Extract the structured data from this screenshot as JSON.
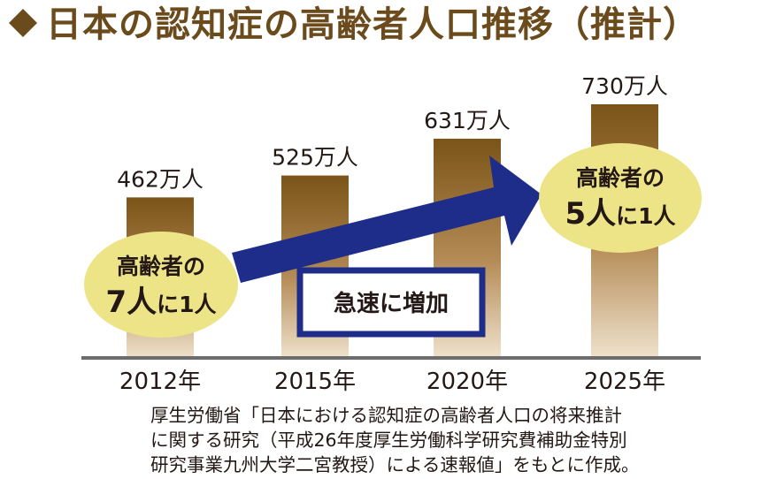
{
  "title": "日本の認知症の高齢者人口推移（推計）",
  "title_icon": "diamond-icon",
  "colors": {
    "title": "#6b4a1c",
    "bar_top": "#7a5418",
    "bar_bottom": "#efe2cc",
    "bubble": "#ece487",
    "arrow": "#1f2d8a",
    "baseline": "#6d6d6d"
  },
  "chart_data": {
    "type": "bar",
    "categories": [
      "2012年",
      "2015年",
      "2020年",
      "2025年"
    ],
    "values": [
      462,
      525,
      631,
      730
    ],
    "value_labels": [
      "462万人",
      "525万人",
      "631万人",
      "730万人"
    ],
    "unit": "万人",
    "ylim": [
      0,
      730
    ],
    "grid": false,
    "annotations": {
      "left_bubble": {
        "line1": "高齢者の",
        "line2_big": "7人",
        "line2_rest": "に1人"
      },
      "right_bubble": {
        "line1": "高齢者の",
        "line2_big": "5人",
        "line2_rest": "に1人"
      },
      "trend_box": "急速に増加"
    }
  },
  "source_lines": [
    "厚生労働省「日本における認知症の高齢者人口の将来推計",
    "に関する研究（平成26年度厚生労働科学研究費補助金特別",
    "研究事業九州大学二宮教授）による速報値」をもとに作成。"
  ]
}
